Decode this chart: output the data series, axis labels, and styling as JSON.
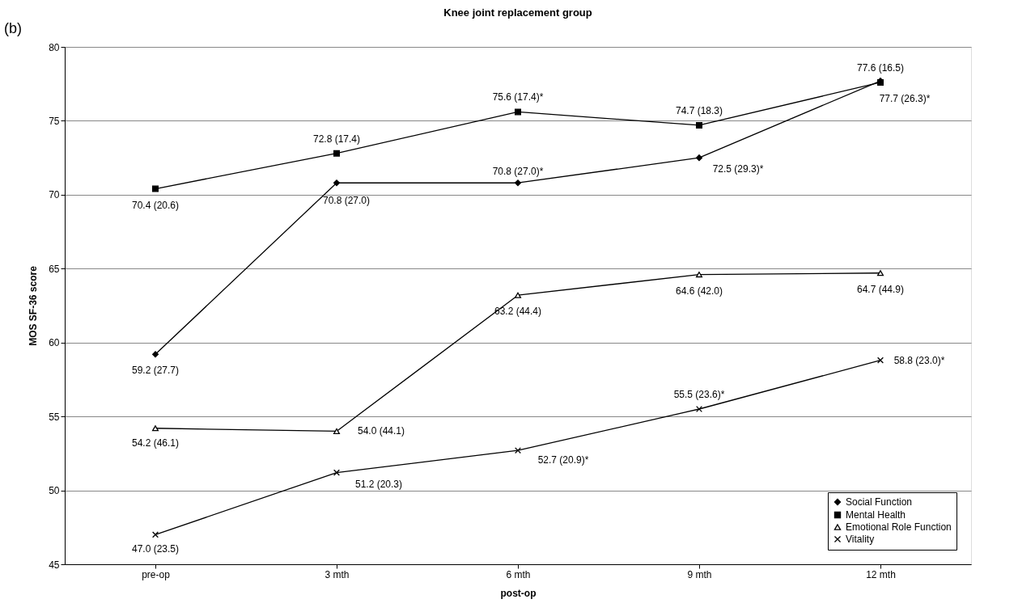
{
  "chart_data": {
    "type": "line",
    "title": "Knee joint replacement group",
    "xlabel": "post-op",
    "ylabel": "MOS SF-36 score",
    "annotations": [
      "(b)"
    ],
    "categories": [
      "pre-op",
      "3 mth",
      "6 mth",
      "9 mth",
      "12 mth"
    ],
    "series": [
      {
        "name": "Social Function",
        "color": "#000000",
        "marker": "diamond",
        "values": [
          59.2,
          70.8,
          70.8,
          72.5,
          77.7
        ],
        "value_labels": [
          "59.2 (27.7)",
          "70.8 (27.0)",
          "70.8 (27.0)*",
          "72.5 (29.3)*",
          "77.7 (26.3)*"
        ]
      },
      {
        "name": "Mental Health",
        "color": "#000000",
        "marker": "square",
        "values": [
          70.4,
          72.8,
          75.6,
          74.7,
          77.6
        ],
        "value_labels": [
          "70.4 (20.6)",
          "72.8 (17.4)",
          "75.6 (17.4)*",
          "74.7 (18.3)",
          "77.6 (16.5)"
        ]
      },
      {
        "name": "Emotional Role Function",
        "color": "#000000",
        "marker": "triangle",
        "values": [
          54.2,
          54.0,
          63.2,
          64.6,
          64.7
        ],
        "value_labels": [
          "54.2 (46.1)",
          "54.0 (44.1)",
          "63.2 (44.4)",
          "64.6 (42.0)",
          "64.7 (44.9)"
        ]
      },
      {
        "name": "Vitality",
        "color": "#000000",
        "marker": "cross",
        "values": [
          47.0,
          51.2,
          52.7,
          55.5,
          58.8
        ],
        "value_labels": [
          "47.0 (23.5)",
          "51.2 (20.3)",
          "52.7 (20.9)*",
          "55.5 (23.6)*",
          "58.8 (23.0)*"
        ]
      }
    ],
    "ylim": [
      45,
      80
    ],
    "yticks": [
      45,
      50,
      55,
      60,
      65,
      70,
      75,
      80
    ],
    "grid": "y",
    "legend": "bottom right",
    "line_style": "solid"
  }
}
